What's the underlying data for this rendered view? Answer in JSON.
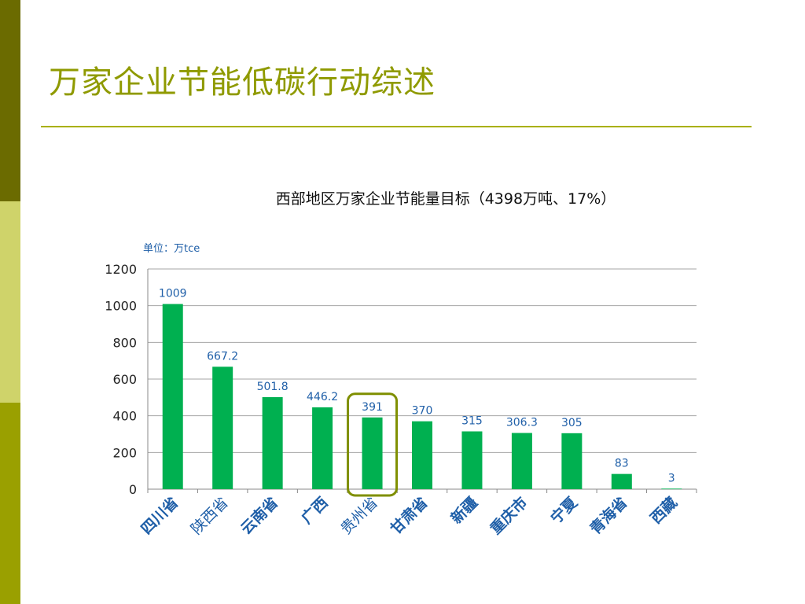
{
  "slide": {
    "title": "万家企业节能低碳行动综述"
  },
  "chart_data": {
    "type": "bar",
    "title": "西部地区万家企业节能量目标（4398万吨、17%）",
    "unit_label": "单位：万tce",
    "categories": [
      "四川省",
      "陕西省",
      "云南省",
      "广西",
      "贵州省",
      "甘肃省",
      "新疆",
      "重庆市",
      "宁夏",
      "青海省",
      "西藏"
    ],
    "values": [
      1009,
      667.2,
      501.8,
      446.2,
      391,
      370,
      315,
      306.3,
      305,
      83,
      3
    ],
    "value_labels": [
      "1009",
      "667.2",
      "501.8",
      "446.2",
      "391",
      "370",
      "315",
      "306.3",
      "305",
      "83",
      "3"
    ],
    "ylim": [
      0,
      1200
    ],
    "yticks": [
      0,
      200,
      400,
      600,
      800,
      1000,
      1200
    ],
    "grid": true,
    "highlighted_category": "贵州省",
    "bold_categories": [
      "四川省",
      "云南省",
      "广西",
      "甘肃省",
      "新疆",
      "重庆市",
      "宁夏",
      "青海省",
      "西藏"
    ],
    "colors": {
      "bar": "#00b050",
      "value_label": "#1f5fa8",
      "category_label": "#1f5fa8",
      "highlight_box": "#7f8f00",
      "grid": "#a6a6a6"
    }
  }
}
